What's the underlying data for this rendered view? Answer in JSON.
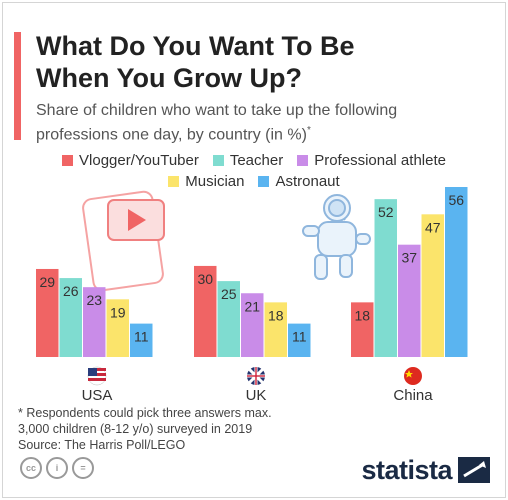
{
  "title_line1": "What Do You Want To Be",
  "title_line2": "When You Grow Up?",
  "subtitle_line1": "Share of children who want to take up the following",
  "subtitle_line2": "professions one day, by country (in %)",
  "subtitle_mark": "*",
  "notes": [
    "* Respondents could pick three answers max.",
    "3,000 children (8-12 y/o) surveyed in 2019",
    "Source: The Harris Poll/LEGO"
  ],
  "brand": "statista",
  "cc_icons": [
    "cc-icon",
    "by-icon",
    "nd-icon"
  ],
  "chart_data": {
    "type": "bar",
    "categories": [
      "USA",
      "UK",
      "China"
    ],
    "series": [
      {
        "name": "Vlogger/YouTuber",
        "color": "#f06464",
        "values": [
          29,
          30,
          18
        ]
      },
      {
        "name": "Teacher",
        "color": "#7fdcd0",
        "values": [
          26,
          25,
          52
        ]
      },
      {
        "name": "Professional athlete",
        "color": "#c98ce8",
        "values": [
          23,
          21,
          37
        ]
      },
      {
        "name": "Musician",
        "color": "#fbe46b",
        "values": [
          19,
          18,
          47
        ]
      },
      {
        "name": "Astronaut",
        "color": "#5ab4f0",
        "values": [
          11,
          11,
          56
        ]
      }
    ],
    "ylim": [
      0,
      56
    ],
    "legend_position": "top",
    "grid": false
  }
}
